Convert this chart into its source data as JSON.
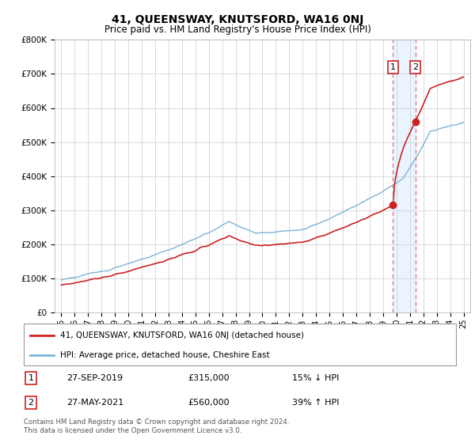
{
  "title": "41, QUEENSWAY, KNUTSFORD, WA16 0NJ",
  "subtitle": "Price paid vs. HM Land Registry's House Price Index (HPI)",
  "ylim": [
    0,
    800000
  ],
  "yticks": [
    0,
    100000,
    200000,
    300000,
    400000,
    500000,
    600000,
    700000,
    800000
  ],
  "ytick_labels": [
    "£0",
    "£100K",
    "£200K",
    "£300K",
    "£400K",
    "£500K",
    "£600K",
    "£700K",
    "£800K"
  ],
  "xlim_start": 1994.5,
  "xlim_end": 2025.5,
  "sale1_x": 2019.74,
  "sale1_y": 315000,
  "sale1_label": "1",
  "sale1_date": "27-SEP-2019",
  "sale1_price": "£315,000",
  "sale1_hpi": "15% ↓ HPI",
  "sale2_x": 2021.41,
  "sale2_y": 560000,
  "sale2_label": "2",
  "sale2_date": "27-MAY-2021",
  "sale2_price": "£560,000",
  "sale2_hpi": "39% ↑ HPI",
  "hpi_color": "#7ab4d8",
  "property_color": "#cc2222",
  "dashed_color": "#e07070",
  "shade_color": "#ddeeff",
  "legend1": "41, QUEENSWAY, KNUTSFORD, WA16 0NJ (detached house)",
  "legend2": "HPI: Average price, detached house, Cheshire East",
  "footnote": "Contains HM Land Registry data © Crown copyright and database right 2024.\nThis data is licensed under the Open Government Licence v3.0.",
  "background_color": "#ffffff",
  "grid_color": "#cccccc"
}
